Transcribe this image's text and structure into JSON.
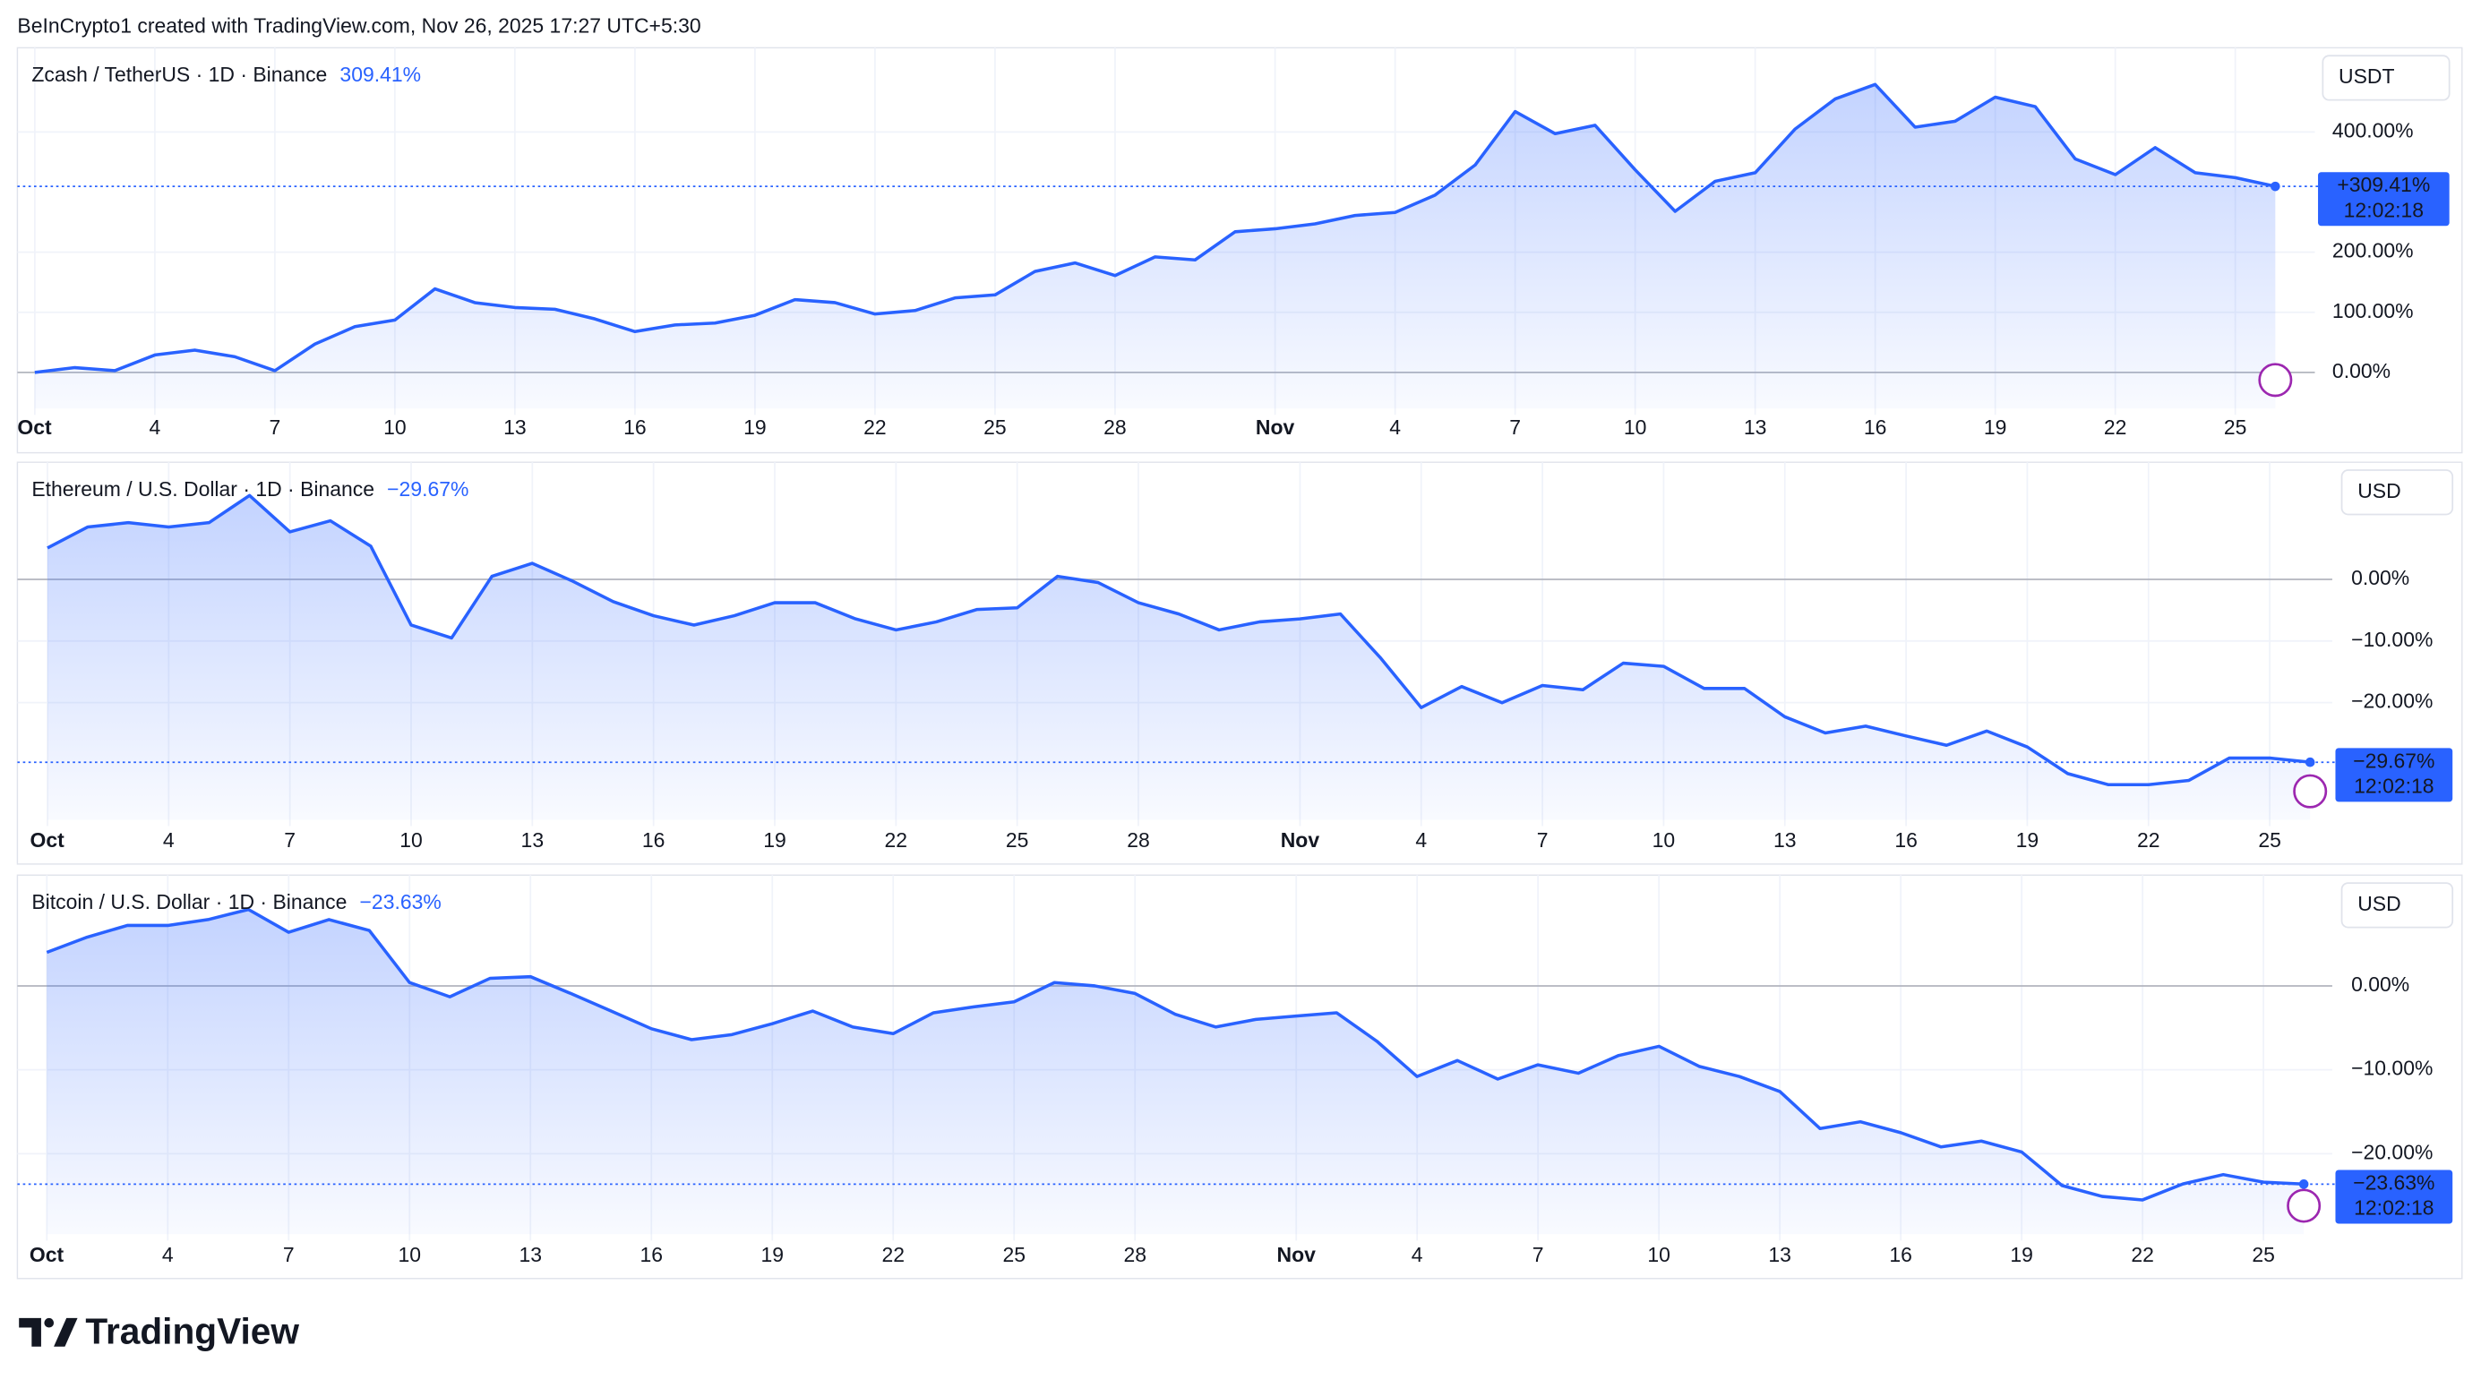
{
  "header": "BeInCrypto1 created with TradingView.com, Nov 26, 2025 17:27 UTC+5:30",
  "footer": "TradingView",
  "chart_data": [
    {
      "type": "line",
      "title": "Zcash / TetherUS · 1D · Binance",
      "change": "309.41%",
      "unit": "USDT",
      "color": "#2962ff",
      "categories": [
        "Oct",
        null,
        null,
        "4",
        null,
        null,
        "7",
        null,
        null,
        "10",
        null,
        null,
        "13",
        null,
        null,
        "16",
        null,
        null,
        "19",
        null,
        null,
        "22",
        null,
        null,
        "25",
        null,
        null,
        "28",
        null,
        null,
        null,
        "Nov",
        null,
        null,
        "4",
        null,
        null,
        "7",
        null,
        null,
        "10",
        null,
        null,
        "13",
        null,
        null,
        "16",
        null,
        null,
        "19",
        null,
        null,
        "22",
        null,
        null,
        "25",
        null
      ],
      "values": [
        0,
        8,
        3,
        29,
        37,
        26,
        3,
        47,
        76,
        87,
        139,
        116,
        108,
        105,
        89,
        68,
        79,
        82,
        95,
        121,
        116,
        97,
        103,
        124,
        129,
        168,
        182,
        161,
        192,
        187,
        234,
        239,
        247,
        261,
        266,
        295,
        345,
        434,
        397,
        411,
        337,
        268,
        318,
        332,
        405,
        455,
        479,
        408,
        418,
        458,
        442,
        355,
        329,
        374,
        332,
        324,
        309.41
      ],
      "last_label": "+309.41%",
      "countdown": "12:02:18",
      "ylim": [
        -60,
        540
      ],
      "yticks": [
        {
          "value": 0,
          "label": "0.00%"
        },
        {
          "value": 100,
          "label": "100.00%"
        },
        {
          "value": 200,
          "label": "200.00%"
        },
        {
          "value": 400,
          "label": "400.00%"
        }
      ],
      "grid": true
    },
    {
      "type": "line",
      "title": "Ethereum / U.S. Dollar · 1D · Binance",
      "change": "−29.67%",
      "unit": "USD",
      "color": "#2962ff",
      "categories": [
        "Oct",
        null,
        null,
        "4",
        null,
        null,
        "7",
        null,
        null,
        "10",
        null,
        null,
        "13",
        null,
        null,
        "16",
        null,
        null,
        "19",
        null,
        null,
        "22",
        null,
        null,
        "25",
        null,
        null,
        "28",
        null,
        null,
        null,
        "Nov",
        null,
        null,
        "4",
        null,
        null,
        "7",
        null,
        null,
        "10",
        null,
        null,
        "13",
        null,
        null,
        "16",
        null,
        null,
        "19",
        null,
        null,
        "22",
        null,
        null,
        "25",
        null
      ],
      "values": [
        5.1,
        8.5,
        9.2,
        8.5,
        9.2,
        13.6,
        7.7,
        9.5,
        5.4,
        -7.4,
        -9.5,
        0.5,
        2.6,
        -0.3,
        -3.6,
        -5.9,
        -7.4,
        -5.9,
        -3.8,
        -3.8,
        -6.4,
        -8.2,
        -6.9,
        -4.9,
        -4.6,
        0.5,
        -0.5,
        -3.8,
        -5.6,
        -8.2,
        -6.9,
        -6.4,
        -5.6,
        -12.8,
        -20.8,
        -17.4,
        -20,
        -17.2,
        -17.9,
        -13.6,
        -14.1,
        -17.7,
        -17.7,
        -22.3,
        -24.9,
        -23.8,
        -25.4,
        -26.9,
        -24.6,
        -27.2,
        -31.5,
        -33.3,
        -33.3,
        -32.6,
        -29,
        -29,
        -29.67
      ],
      "last_label": "−29.67%",
      "countdown": "12:02:18",
      "ylim": [
        -39,
        19
      ],
      "yticks": [
        {
          "value": 0,
          "label": "0.00%"
        },
        {
          "value": -10,
          "label": "−10.00%"
        },
        {
          "value": -20,
          "label": "−20.00%"
        }
      ],
      "grid": true
    },
    {
      "type": "line",
      "title": "Bitcoin / U.S. Dollar · 1D · Binance",
      "change": "−23.63%",
      "unit": "USD",
      "color": "#2962ff",
      "categories": [
        "Oct",
        null,
        null,
        "4",
        null,
        null,
        "7",
        null,
        null,
        "10",
        null,
        null,
        "13",
        null,
        null,
        "16",
        null,
        null,
        "19",
        null,
        null,
        "22",
        null,
        null,
        "25",
        null,
        null,
        "28",
        null,
        null,
        null,
        "Nov",
        null,
        null,
        "4",
        null,
        null,
        "7",
        null,
        null,
        "10",
        null,
        null,
        "13",
        null,
        null,
        "16",
        null,
        null,
        "19",
        null,
        null,
        "22",
        null,
        null,
        "25",
        null
      ],
      "values": [
        4,
        5.8,
        7.2,
        7.2,
        7.9,
        9.1,
        6.4,
        7.9,
        6.6,
        0.4,
        -1.3,
        0.9,
        1.1,
        -0.9,
        -3,
        -5.1,
        -6.4,
        -5.8,
        -4.5,
        -3,
        -4.9,
        -5.7,
        -3.2,
        -2.5,
        -1.9,
        0.4,
        0,
        -0.9,
        -3.4,
        -4.9,
        -4,
        -3.6,
        -3.2,
        -6.6,
        -10.8,
        -8.9,
        -11.1,
        -9.4,
        -10.4,
        -8.3,
        -7.2,
        -9.6,
        -10.8,
        -12.6,
        -17,
        -16.2,
        -17.5,
        -19.2,
        -18.5,
        -19.8,
        -23.8,
        -25.1,
        -25.5,
        -23.6,
        -22.5,
        -23.4,
        -23.63
      ],
      "last_label": "−23.63%",
      "countdown": "12:02:18",
      "ylim": [
        -29.6,
        13.2
      ],
      "yticks": [
        {
          "value": 0,
          "label": "0.00%"
        },
        {
          "value": -10,
          "label": "−10.00%"
        },
        {
          "value": -20,
          "label": "−20.00%"
        }
      ],
      "grid": true
    }
  ]
}
